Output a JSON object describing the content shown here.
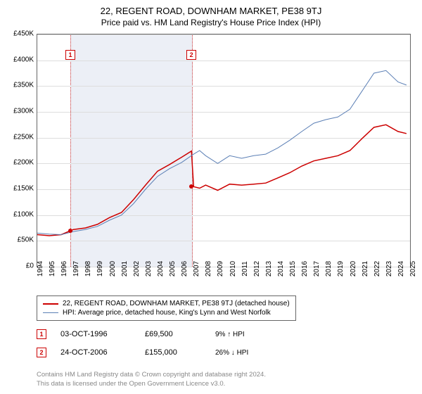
{
  "title": "22, REGENT ROAD, DOWNHAM MARKET, PE38 9TJ",
  "subtitle": "Price paid vs. HM Land Registry's House Price Index (HPI)",
  "chart": {
    "type": "line",
    "x_range": [
      1994,
      2025
    ],
    "y_range": [
      0,
      450000
    ],
    "y_ticks": [
      0,
      50000,
      100000,
      150000,
      200000,
      250000,
      300000,
      350000,
      400000,
      450000
    ],
    "y_tick_labels": [
      "£0",
      "£50K",
      "£100K",
      "£150K",
      "£200K",
      "£250K",
      "£300K",
      "£350K",
      "£400K",
      "£450K"
    ],
    "x_ticks": [
      1994,
      1995,
      1996,
      1997,
      1998,
      1999,
      2000,
      2001,
      2002,
      2003,
      2004,
      2005,
      2006,
      2007,
      2008,
      2009,
      2010,
      2011,
      2012,
      2013,
      2014,
      2015,
      2016,
      2017,
      2018,
      2019,
      2020,
      2021,
      2022,
      2023,
      2024,
      2025
    ],
    "grid_color": "#dddddd",
    "border_color": "#666666",
    "background_color": "#ffffff",
    "shade_color": "rgba(200,210,230,0.35)",
    "shade_border": "#cc3333",
    "shade_range": [
      1996.75,
      2006.82
    ],
    "series": [
      {
        "name": "22, REGENT ROAD, DOWNHAM MARKET, PE38 9TJ (detached house)",
        "color": "#cc0000",
        "width": 1.5,
        "data": [
          [
            1994,
            62000
          ],
          [
            1995,
            60000
          ],
          [
            1996,
            62000
          ],
          [
            1996.75,
            69500
          ],
          [
            1997,
            72000
          ],
          [
            1998,
            75000
          ],
          [
            1999,
            82000
          ],
          [
            2000,
            95000
          ],
          [
            2001,
            105000
          ],
          [
            2002,
            130000
          ],
          [
            2003,
            158000
          ],
          [
            2004,
            185000
          ],
          [
            2005,
            198000
          ],
          [
            2006,
            212000
          ],
          [
            2006.82,
            224000
          ],
          [
            2007,
            155000
          ],
          [
            2007.5,
            152000
          ],
          [
            2008,
            158000
          ],
          [
            2009,
            148000
          ],
          [
            2010,
            160000
          ],
          [
            2011,
            158000
          ],
          [
            2012,
            160000
          ],
          [
            2013,
            162000
          ],
          [
            2014,
            172000
          ],
          [
            2015,
            182000
          ],
          [
            2016,
            195000
          ],
          [
            2017,
            205000
          ],
          [
            2018,
            210000
          ],
          [
            2019,
            215000
          ],
          [
            2020,
            225000
          ],
          [
            2021,
            248000
          ],
          [
            2022,
            270000
          ],
          [
            2023,
            275000
          ],
          [
            2024,
            262000
          ],
          [
            2024.7,
            258000
          ]
        ]
      },
      {
        "name": "HPI: Average price, detached house, King's Lynn and West Norfolk",
        "color": "#5b7fb5",
        "width": 1,
        "data": [
          [
            1994,
            65000
          ],
          [
            1995,
            63000
          ],
          [
            1996,
            62000
          ],
          [
            1997,
            68000
          ],
          [
            1998,
            72000
          ],
          [
            1999,
            78000
          ],
          [
            2000,
            90000
          ],
          [
            2001,
            100000
          ],
          [
            2002,
            122000
          ],
          [
            2003,
            150000
          ],
          [
            2004,
            175000
          ],
          [
            2005,
            190000
          ],
          [
            2006,
            202000
          ],
          [
            2007,
            218000
          ],
          [
            2007.5,
            225000
          ],
          [
            2008,
            215000
          ],
          [
            2009,
            200000
          ],
          [
            2010,
            215000
          ],
          [
            2011,
            210000
          ],
          [
            2012,
            215000
          ],
          [
            2013,
            218000
          ],
          [
            2014,
            230000
          ],
          [
            2015,
            245000
          ],
          [
            2016,
            262000
          ],
          [
            2017,
            278000
          ],
          [
            2018,
            285000
          ],
          [
            2019,
            290000
          ],
          [
            2020,
            305000
          ],
          [
            2021,
            340000
          ],
          [
            2022,
            375000
          ],
          [
            2023,
            380000
          ],
          [
            2024,
            358000
          ],
          [
            2024.7,
            352000
          ]
        ]
      }
    ],
    "markers": [
      {
        "label": "1",
        "x_year": 1996.75,
        "y_price": 69500,
        "box_top": 410000
      },
      {
        "label": "2",
        "x_year": 2006.82,
        "y_price": 155000,
        "box_top": 410000
      }
    ]
  },
  "legend": {
    "items": [
      {
        "label": "22, REGENT ROAD, DOWNHAM MARKET, PE38 9TJ (detached house)",
        "color": "#cc0000",
        "width": 2
      },
      {
        "label": "HPI: Average price, detached house, King's Lynn and West Norfolk",
        "color": "#5b7fb5",
        "width": 1
      }
    ]
  },
  "sales": [
    {
      "marker": "1",
      "date": "03-OCT-1996",
      "price": "£69,500",
      "delta": "9% ↑ HPI"
    },
    {
      "marker": "2",
      "date": "24-OCT-2006",
      "price": "£155,000",
      "delta": "26% ↓ HPI"
    }
  ],
  "footer": {
    "line1": "Contains HM Land Registry data © Crown copyright and database right 2024.",
    "line2": "This data is licensed under the Open Government Licence v3.0."
  }
}
